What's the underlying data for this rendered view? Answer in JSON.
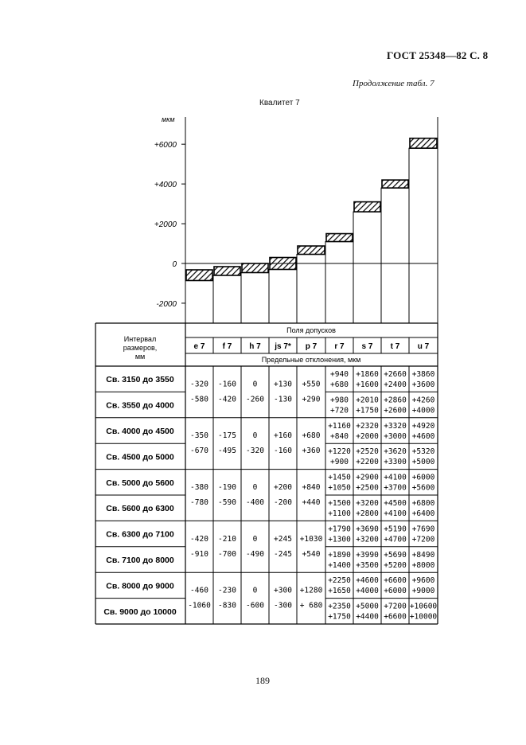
{
  "header": {
    "title": "ГОСТ 25348—82 С. 8",
    "continuation": "Продолжение табл. 7"
  },
  "chart_data": {
    "type": "bar",
    "title": "Квалитет 7",
    "ylabel": "мкм",
    "ylim": [
      -2000,
      7000
    ],
    "ticks": [
      {
        "value": 6000,
        "label": "+6000"
      },
      {
        "value": 4000,
        "label": "+4000"
      },
      {
        "value": 2000,
        "label": "+2000"
      },
      {
        "value": 0,
        "label": "0"
      },
      {
        "value": -2000,
        "label": "-2000"
      }
    ],
    "categories": [
      "e 7",
      "f 7",
      "h 7",
      "js 7*",
      "p 7",
      "r 7",
      "s 7",
      "t 7",
      "u 7"
    ],
    "series": [
      {
        "values_upper": [
          -320,
          -160,
          0,
          300,
          880,
          1500,
          3100,
          4200,
          6300
        ],
        "values_lower": [
          -860,
          -600,
          -460,
          -300,
          460,
          1100,
          2600,
          3800,
          5800
        ]
      }
    ]
  },
  "table": {
    "interval_header": "Интервал размеров, мм",
    "fields_header": "Поля допусков",
    "deviations_header": "Предельные отклонения, мкм",
    "columns": [
      "e 7",
      "f 7",
      "h 7",
      "js 7*",
      "p 7",
      "r 7",
      "s 7",
      "t 7",
      "u 7"
    ],
    "row_labels": [
      "Св. 3150 до 3550",
      "Св. 3550 до 4000",
      "Св. 4000 до 4500",
      "Св. 4500 до 5000",
      "Св. 5000 до 5600",
      "Св. 5600 до 6300",
      "Св. 6300 до 7100",
      "Св. 7100 до 8000",
      "Св. 8000 до 9000",
      "Св. 9000 до 10000"
    ],
    "groups": [
      {
        "shared": [
          [
            "-320",
            "-580"
          ],
          [
            "-160",
            "-420"
          ],
          [
            "0",
            "-260"
          ],
          [
            "+130",
            "-130"
          ],
          [
            "+550",
            "+290"
          ]
        ],
        "split": [
          [
            [
              "+940",
              "+680"
            ],
            [
              "+1860",
              "+1600"
            ],
            [
              "+2660",
              "+2400"
            ],
            [
              "+3860",
              "+3600"
            ]
          ],
          [
            [
              "+980",
              "+720"
            ],
            [
              "+2010",
              "+1750"
            ],
            [
              "+2860",
              "+2600"
            ],
            [
              "+4260",
              "+4000"
            ]
          ]
        ]
      },
      {
        "shared": [
          [
            "-350",
            "-670"
          ],
          [
            "-175",
            "-495"
          ],
          [
            "0",
            "-320"
          ],
          [
            "+160",
            "-160"
          ],
          [
            "+680",
            "+360"
          ]
        ],
        "split": [
          [
            [
              "+1160",
              "+840"
            ],
            [
              "+2320",
              "+2000"
            ],
            [
              "+3320",
              "+3000"
            ],
            [
              "+4920",
              "+4600"
            ]
          ],
          [
            [
              "+1220",
              "+900"
            ],
            [
              "+2520",
              "+2200"
            ],
            [
              "+3620",
              "+3300"
            ],
            [
              "+5320",
              "+5000"
            ]
          ]
        ]
      },
      {
        "shared": [
          [
            "-380",
            "-780"
          ],
          [
            "-190",
            "-590"
          ],
          [
            "0",
            "-400"
          ],
          [
            "+200",
            "-200"
          ],
          [
            "+840",
            "+440"
          ]
        ],
        "split": [
          [
            [
              "+1450",
              "+1050"
            ],
            [
              "+2900",
              "+2500"
            ],
            [
              "+4100",
              "+3700"
            ],
            [
              "+6000",
              "+5600"
            ]
          ],
          [
            [
              "+1500",
              "+1100"
            ],
            [
              "+3200",
              "+2800"
            ],
            [
              "+4500",
              "+4100"
            ],
            [
              "+6800",
              "+6400"
            ]
          ]
        ]
      },
      {
        "shared": [
          [
            "-420",
            "-910"
          ],
          [
            "-210",
            "-700"
          ],
          [
            "0",
            "-490"
          ],
          [
            "+245",
            "-245"
          ],
          [
            "+1030",
            "+540"
          ]
        ],
        "split": [
          [
            [
              "+1790",
              "+1300"
            ],
            [
              "+3690",
              "+3200"
            ],
            [
              "+5190",
              "+4700"
            ],
            [
              "+7690",
              "+7200"
            ]
          ],
          [
            [
              "+1890",
              "+1400"
            ],
            [
              "+3990",
              "+3500"
            ],
            [
              "+5690",
              "+5200"
            ],
            [
              "+8490",
              "+8000"
            ]
          ]
        ]
      },
      {
        "shared": [
          [
            "-460",
            "-1060"
          ],
          [
            "-230",
            "-830"
          ],
          [
            "0",
            "-600"
          ],
          [
            "+300",
            "-300"
          ],
          [
            "+1280",
            "+ 680"
          ]
        ],
        "split": [
          [
            [
              "+2250",
              "+1650"
            ],
            [
              "+4600",
              "+4000"
            ],
            [
              "+6600",
              "+6000"
            ],
            [
              "+9600",
              "+9000"
            ]
          ],
          [
            [
              "+2350",
              "+1750"
            ],
            [
              "+5000",
              "+4400"
            ],
            [
              "+7200",
              "+6600"
            ],
            [
              "+10600",
              "+10000"
            ]
          ]
        ]
      }
    ]
  },
  "footer": {
    "page_number": "189"
  }
}
